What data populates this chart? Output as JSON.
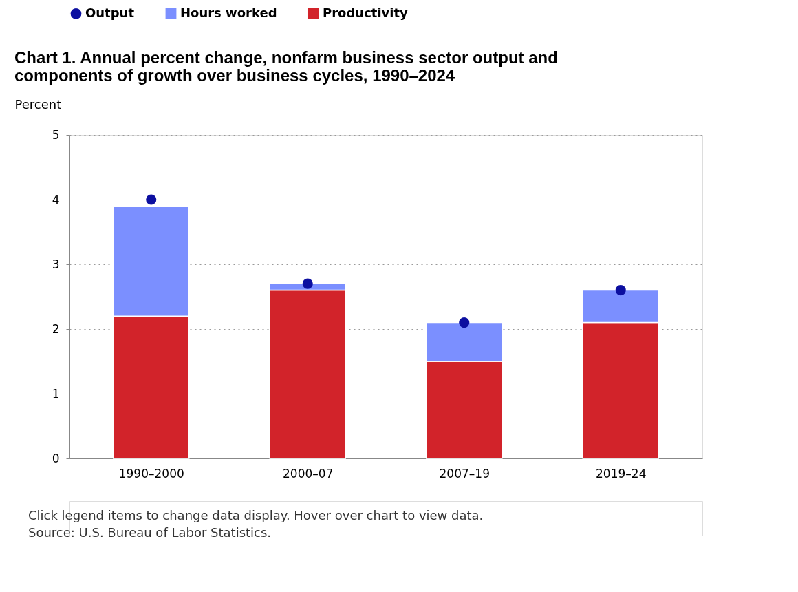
{
  "chart_data": {
    "type": "bar",
    "title": "Chart 1. Annual percent change, nonfarm business sector output and components of growth over business cycles, 1990–2024",
    "categories": [
      "1990–2000",
      "2000–07",
      "2007–19",
      "2019–24"
    ],
    "stacked": true,
    "series": [
      {
        "name": "Productivity",
        "color": "#d2232a",
        "values": [
          2.2,
          2.6,
          1.5,
          2.1
        ]
      },
      {
        "name": "Hours worked",
        "color": "#7b8fff",
        "values": [
          1.7,
          0.1,
          0.6,
          0.5
        ]
      },
      {
        "name": "Output",
        "type": "scatter",
        "color": "#0c0fa0",
        "values": [
          4.0,
          2.7,
          2.1,
          2.6
        ]
      }
    ],
    "ylabel": "Percent",
    "ylim": [
      0,
      5
    ],
    "yticks": [
      0,
      1,
      2,
      3,
      4,
      5
    ],
    "grid": "y",
    "legend": "top",
    "marker": "circle",
    "annotations": [
      "Click legend items to change data display. Hover over chart to view data.",
      "Source: U.S. Bureau of Labor Statistics."
    ]
  }
}
